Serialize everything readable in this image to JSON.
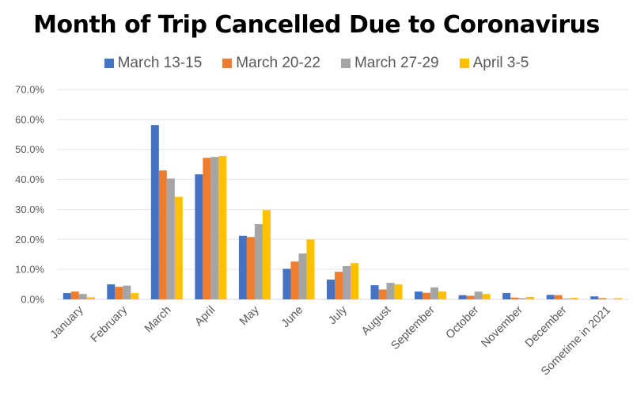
{
  "chart_data": {
    "type": "bar",
    "title": "Month of Trip Cancelled Due to Coronavirus",
    "xlabel": "",
    "ylabel": "",
    "ylim": [
      0,
      70
    ],
    "y_ticks": [
      "0.0%",
      "10.0%",
      "20.0%",
      "30.0%",
      "40.0%",
      "50.0%",
      "60.0%",
      "70.0%"
    ],
    "y_tick_values": [
      0,
      10,
      20,
      30,
      40,
      50,
      60,
      70
    ],
    "grid": true,
    "legend_position": "top-center",
    "categories": [
      "January",
      "February",
      "March",
      "April",
      "May",
      "June",
      "July",
      "August",
      "September",
      "October",
      "November",
      "December",
      "Sometime in 2021"
    ],
    "series": [
      {
        "name": "March 13-15",
        "color": "#4472C4",
        "values": [
          2.1,
          5.0,
          58.1,
          41.7,
          21.2,
          10.2,
          6.6,
          4.7,
          2.6,
          1.4,
          2.1,
          1.5,
          1.0
        ]
      },
      {
        "name": "March 20-22",
        "color": "#ED7D31",
        "values": [
          2.6,
          4.2,
          43.0,
          47.2,
          20.8,
          12.6,
          9.2,
          3.3,
          2.2,
          1.2,
          0.6,
          1.4,
          0.4
        ]
      },
      {
        "name": "March 27-29",
        "color": "#A5A5A5",
        "values": [
          1.8,
          4.6,
          40.3,
          47.5,
          25.1,
          15.3,
          11.1,
          5.5,
          4.0,
          2.6,
          0.4,
          0.3,
          0.1
        ]
      },
      {
        "name": "April 3-5",
        "color": "#FFC000",
        "values": [
          0.7,
          2.1,
          34.2,
          47.8,
          29.8,
          20.0,
          12.1,
          5.0,
          2.6,
          1.8,
          0.8,
          0.5,
          0.4
        ]
      }
    ]
  }
}
